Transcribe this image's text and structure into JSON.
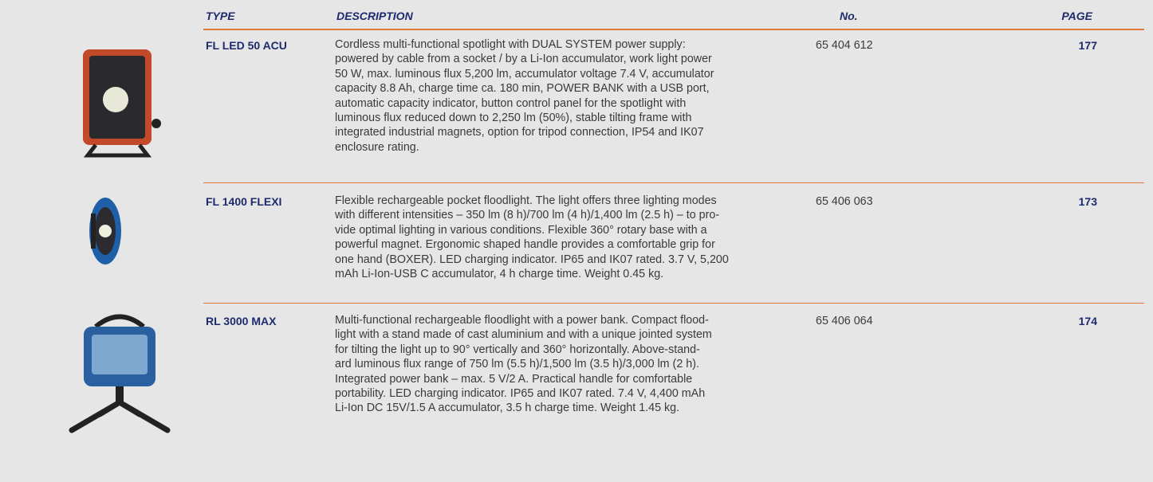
{
  "header": {
    "type": "TYPE",
    "description": "DESCRIPTION",
    "number": "No.",
    "page": "PAGE"
  },
  "rows": [
    {
      "type": "FL LED 50 ACU",
      "description": [
        "Cordless multi-functional spotlight with DUAL SYSTEM power supply:",
        "powered by cable from a socket / by a Li-Ion accumulator, work light power",
        "50 W, max. luminous flux 5,200 lm, accumulator voltage 7.4 V, accumulator",
        "capacity 8.8 Ah, charge time ca. 180 min, POWER BANK with a USB port,",
        "automatic capacity indicator, button control panel for the spotlight with",
        "luminous flux reduced down to 2,250 lm (50%), stable tilting frame with",
        "integrated industrial magnets, option for tripod connection, IP54 and IK07",
        "enclosure rating."
      ],
      "number": "65 404 612",
      "page": "177"
    },
    {
      "type": "FL 1400 FLEXI",
      "description": [
        "Flexible rechargeable pocket floodlight. The light offers three lighting modes",
        "with different intensities – 350 lm (8 h)/700 lm (4 h)/1,400 lm (2.5 h) – to pro-",
        "vide optimal lighting in various conditions. Flexible 360° rotary base with a",
        "powerful magnet. Ergonomic shaped handle provides a comfortable grip for",
        "one hand (BOXER). LED charging indicator. IP65 and IK07 rated. 3.7 V, 5,200",
        "mAh Li-Ion-USB C accumulator, 4 h charge time. Weight 0.45 kg."
      ],
      "number": "65 406 063",
      "page": "173"
    },
    {
      "type": "RL 3000 MAX",
      "description": [
        "Multi-functional rechargeable floodlight with a power bank. Compact flood-",
        "light with a stand made of cast aluminium and with a unique jointed system",
        "for tilting the light up to 90° vertically and 360° horizontally. Above-stand-",
        "ard luminous flux range of 750 lm (5.5 h)/1,500 lm (3.5 h)/3,000 lm (2 h).",
        "Integrated power bank – max. 5 V/2 A. Practical handle for comfortable",
        "portability. LED charging indicator. IP65 and IK07 rated. 7.4 V, 4,400 mAh",
        "Li-Ion DC 15V/1.5 A accumulator, 3.5 h charge time. Weight 1.45 kg."
      ],
      "number": "65 406 064",
      "page": "174"
    }
  ]
}
